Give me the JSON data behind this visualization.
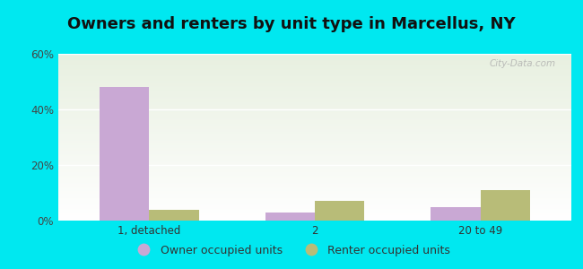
{
  "title": "Owners and renters by unit type in Marcellus, NY",
  "categories": [
    "1, detached",
    "2",
    "20 to 49"
  ],
  "owner_values": [
    48,
    3,
    5
  ],
  "renter_values": [
    4,
    7,
    11
  ],
  "owner_color": "#c9a8d4",
  "renter_color": "#b8bc78",
  "ylim": [
    0,
    60
  ],
  "yticks": [
    0,
    20,
    40,
    60
  ],
  "ytick_labels": [
    "0%",
    "20%",
    "40%",
    "60%"
  ],
  "background_outer": "#00e8f0",
  "background_inner_top": "#e8f0e0",
  "background_inner_bottom": "#ffffff",
  "bar_width": 0.3,
  "legend_owner": "Owner occupied units",
  "legend_renter": "Renter occupied units",
  "watermark": "City-Data.com",
  "title_fontsize": 13,
  "axis_fontsize": 8.5,
  "legend_fontsize": 9
}
